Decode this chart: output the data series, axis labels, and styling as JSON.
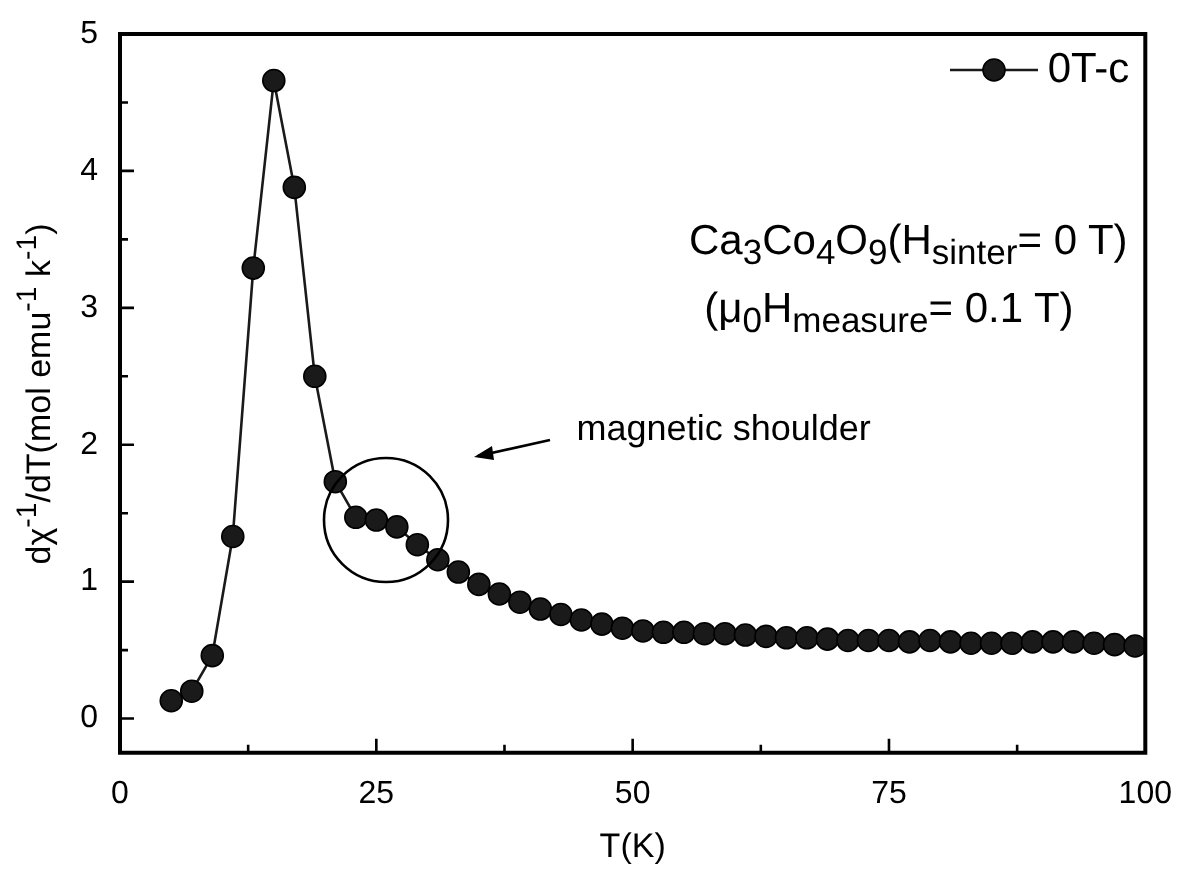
{
  "chart_data": {
    "type": "line",
    "xlabel": "T(K)",
    "ylabel": "dχ$^{-1}$/dT(mol emu$^{-1}$ k$^{-1}$)",
    "x": [
      5,
      7,
      9,
      11,
      13,
      15,
      17,
      19,
      21,
      23,
      25,
      27,
      29,
      31,
      33,
      35,
      37,
      39,
      41,
      43,
      45,
      47,
      49,
      51,
      53,
      55,
      57,
      59,
      61,
      63,
      65,
      67,
      69,
      71,
      73,
      75,
      77,
      79,
      81,
      83,
      85,
      87,
      89,
      91,
      93,
      95,
      97,
      99
    ],
    "series": [
      {
        "name": "0T-c",
        "color": "#1a1a1a",
        "values": [
          0.13,
          0.2,
          0.46,
          1.33,
          3.29,
          4.66,
          3.88,
          2.5,
          1.73,
          1.47,
          1.45,
          1.4,
          1.27,
          1.16,
          1.07,
          0.98,
          0.91,
          0.85,
          0.8,
          0.76,
          0.72,
          0.69,
          0.66,
          0.64,
          0.63,
          0.63,
          0.62,
          0.62,
          0.61,
          0.6,
          0.59,
          0.59,
          0.58,
          0.57,
          0.57,
          0.57,
          0.56,
          0.57,
          0.56,
          0.55,
          0.55,
          0.55,
          0.56,
          0.56,
          0.56,
          0.55,
          0.54,
          0.53
        ]
      }
    ],
    "xlim": [
      0,
      100
    ],
    "xticks": [
      0,
      {
        "value": 12.5,
        "label": null
      },
      25,
      {
        "value": 37.5,
        "label": null
      },
      50,
      {
        "value": 62.5,
        "label": null
      },
      75,
      {
        "value": 87.5,
        "label": null
      },
      100
    ],
    "ylim": [
      -0.25,
      5
    ],
    "yticks": [
      0,
      {
        "value": 0.5,
        "label": null
      },
      1,
      {
        "value": 1.5,
        "label": null
      },
      2,
      {
        "value": 2.5,
        "label": null
      },
      3,
      {
        "value": 3.5,
        "label": null
      },
      4,
      {
        "value": 4.5,
        "label": null
      },
      5
    ],
    "annotations": [
      "Ca$_{3}$Co$_{4}$O$_{9}$(H$_{sinter}$= 0 T)",
      "(μ$_{0}$H$_{measure}$= 0.1 T)",
      "magnetic shoulder"
    ],
    "grid": false,
    "legend": "top right",
    "marker": "circle",
    "line_style": "solid"
  }
}
